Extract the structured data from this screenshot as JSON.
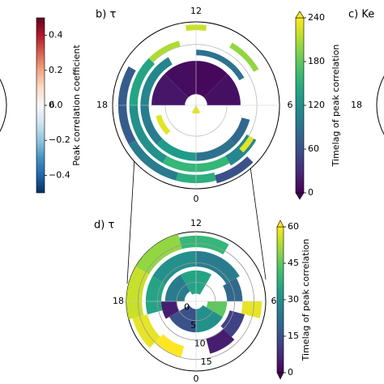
{
  "chart_data": [
    {
      "type": "polar-heatmap",
      "mlt_ticks": [
        6
      ],
      "colorbar": {
        "label": "Peak correlation coefficient",
        "colormap": "RdBu_r",
        "lim": [
          -0.5,
          0.5
        ],
        "ticks": [
          0.4,
          0.2,
          {
            "value": 0,
            "label": "0.0"
          },
          {
            "value": -0.2,
            "label": "−0.2"
          },
          {
            "value": -0.4,
            "label": "−0.4"
          }
        ],
        "extend": "none"
      }
    },
    {
      "type": "polar-heatmap",
      "title": "b) τ",
      "mlt_ticks": [
        12,
        18,
        6,
        0
      ],
      "rlim": [
        0,
        30
      ],
      "cells": [
        {
          "mlt": [
            6,
            9
          ],
          "colat": [
            4,
            16
          ],
          "value": 10
        },
        {
          "mlt": [
            9,
            12
          ],
          "colat": [
            4,
            16
          ],
          "value": 5
        },
        {
          "mlt": [
            12,
            15
          ],
          "colat": [
            4,
            16
          ],
          "value": 8
        },
        {
          "mlt": [
            15,
            18
          ],
          "colat": [
            4,
            16
          ],
          "value": 15
        },
        {
          "mlt": [
            22,
            2
          ],
          "colat": [
            0,
            3
          ],
          "value": 230
        },
        {
          "mlt": [
            19,
            21
          ],
          "colat": [
            13,
            15
          ],
          "value": 230
        },
        {
          "mlt": [
            14,
            18
          ],
          "colat": [
            17,
            20
          ],
          "value": 110
        },
        {
          "mlt": [
            18,
            21
          ],
          "colat": [
            17,
            20
          ],
          "value": 100
        },
        {
          "mlt": [
            21,
            24
          ],
          "colat": [
            17,
            20
          ],
          "value": 130
        },
        {
          "mlt": [
            0,
            3
          ],
          "colat": [
            17,
            20
          ],
          "value": 90
        },
        {
          "mlt": [
            3,
            5
          ],
          "colat": [
            17,
            20
          ],
          "value": 80
        },
        {
          "mlt": [
            8,
            12
          ],
          "colat": [
            18,
            20
          ],
          "value": 90
        },
        {
          "mlt": [
            15,
            18
          ],
          "colat": [
            21,
            24
          ],
          "value": 140
        },
        {
          "mlt": [
            18,
            22
          ],
          "colat": [
            21,
            24
          ],
          "value": 120
        },
        {
          "mlt": [
            22,
            2
          ],
          "colat": [
            21,
            24
          ],
          "value": 160
        },
        {
          "mlt": [
            2,
            4
          ],
          "colat": [
            21,
            25
          ],
          "value": 110
        },
        {
          "mlt": [
            16,
            20
          ],
          "colat": [
            25,
            28
          ],
          "value": 70
        },
        {
          "mlt": [
            20,
            23
          ],
          "colat": [
            25,
            28
          ],
          "value": 100
        },
        {
          "mlt": [
            23,
            1
          ],
          "colat": [
            25,
            28
          ],
          "value": 150
        },
        {
          "mlt": [
            1,
            3
          ],
          "colat": [
            26,
            29
          ],
          "value": 60
        },
        {
          "mlt": [
            11.5,
            12.5
          ],
          "colat": [
            27,
            29
          ],
          "value": 220
        },
        {
          "mlt": [
            13,
            15
          ],
          "colat": [
            22,
            24
          ],
          "value": 210
        },
        {
          "mlt": [
            8,
            10
          ],
          "colat": [
            24,
            26
          ],
          "value": 200
        },
        {
          "mlt": [
            3,
            4
          ],
          "colat": [
            22,
            24
          ],
          "value": 230
        }
      ],
      "colorbar": {
        "label": "Timelag of peak correlation",
        "colormap": "viridis",
        "lim": [
          0,
          240
        ],
        "ticks": [
          0,
          60,
          120,
          180,
          240
        ],
        "extend": "both"
      }
    },
    {
      "type": "polar-heatmap",
      "title": "c) Ke",
      "mlt_ticks": [
        18
      ]
    },
    {
      "type": "polar-heatmap",
      "title": "d) τ",
      "mlt_ticks": [
        12,
        18,
        6,
        0
      ],
      "rlim": [
        0,
        18
      ],
      "rticks": [
        0,
        5,
        10,
        15
      ],
      "cells": [
        {
          "mlt": [
            13,
            16
          ],
          "colat": [
            14,
            18
          ],
          "value": 50
        },
        {
          "mlt": [
            16,
            19
          ],
          "colat": [
            14,
            18
          ],
          "value": 55
        },
        {
          "mlt": [
            19,
            21
          ],
          "colat": [
            13,
            17
          ],
          "value": 58
        },
        {
          "mlt": [
            10,
            13
          ],
          "colat": [
            14,
            17
          ],
          "value": 40
        },
        {
          "mlt": [
            12,
            16
          ],
          "colat": [
            9,
            13
          ],
          "value": 30
        },
        {
          "mlt": [
            16,
            19
          ],
          "colat": [
            9,
            13
          ],
          "value": 35
        },
        {
          "mlt": [
            8,
            12
          ],
          "colat": [
            9,
            13
          ],
          "value": 25
        },
        {
          "mlt": [
            6,
            8
          ],
          "colat": [
            8,
            12
          ],
          "value": 20
        },
        {
          "mlt": [
            20,
            24
          ],
          "colat": [
            2,
            8
          ],
          "value": 15
        },
        {
          "mlt": [
            0,
            4
          ],
          "colat": [
            2,
            8
          ],
          "value": 30
        },
        {
          "mlt": [
            4,
            6
          ],
          "colat": [
            3,
            8
          ],
          "value": 45
        },
        {
          "mlt": [
            14,
            18
          ],
          "colat": [
            3,
            8
          ],
          "value": 25
        },
        {
          "mlt": [
            10,
            14
          ],
          "colat": [
            2,
            8
          ],
          "value": 35
        },
        {
          "mlt": [
            18,
            20
          ],
          "colat": [
            5,
            9
          ],
          "value": 5
        },
        {
          "mlt": [
            1,
            3
          ],
          "colat": [
            10,
            14
          ],
          "value": 5
        },
        {
          "mlt": [
            3,
            5
          ],
          "colat": [
            9,
            13
          ],
          "value": 12
        },
        {
          "mlt": [
            21,
            23
          ],
          "colat": [
            12,
            15
          ],
          "value": 60
        },
        {
          "mlt": [
            5,
            6
          ],
          "colat": [
            12,
            17
          ],
          "value": 58
        }
      ],
      "colorbar": {
        "label": "Timelag of peak correlation",
        "colormap": "viridis",
        "lim": [
          0,
          60
        ],
        "ticks": [
          0,
          15,
          30,
          45,
          60
        ],
        "extend": "both"
      }
    }
  ]
}
